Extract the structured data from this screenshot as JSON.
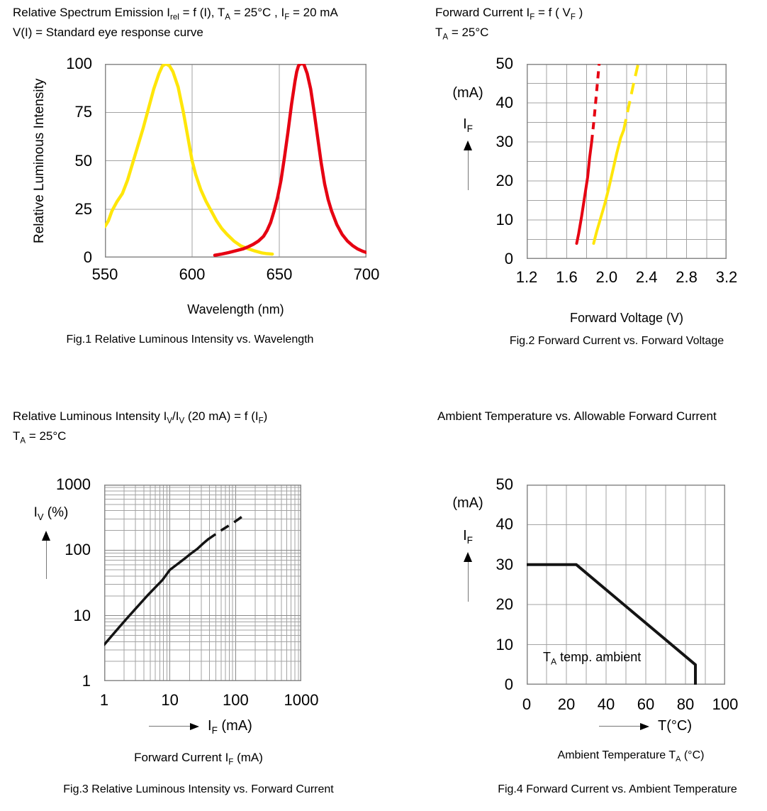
{
  "colors": {
    "red": "#e60012",
    "yellow": "#ffe60a",
    "black": "#141414",
    "grid": "#a3a3a3",
    "border": "#8a8a8a",
    "text": "#000000"
  },
  "figures": {
    "fig1": {
      "title_line1_html": "Relative Spectrum Emission I<sub>rel</sub> = f (I), T<sub>A</sub> = 25°C , I<sub>F</sub> = 20 mA",
      "title_line2": "V(I) = Standard eye response curve",
      "ylabel": "Relative Luminous Intensity",
      "yticks": [
        "100",
        "75",
        "50",
        "25",
        "0"
      ],
      "xticks": [
        "550",
        "600",
        "650",
        "700"
      ],
      "xlabel": "Wavelength (nm)",
      "caption": "Fig.1 Relative Luminous Intensity vs. Wavelength"
    },
    "fig2": {
      "title_line1_html": "Forward Current I<sub>F</sub> = f ( V<sub>F</sub> )",
      "title_line2_html": "T<sub>A</sub> = 25°C",
      "unit_label": "(mA)",
      "sym_label_html": "I<sub>F</sub>",
      "yticks": [
        "50",
        "40",
        "30",
        "20",
        "10",
        "0"
      ],
      "xticks": [
        "1.2",
        "1.6",
        "2.0",
        "2.4",
        "2.8",
        "3.2"
      ],
      "xlabel": "Forward Voltage (V)",
      "caption": "Fig.2 Forward Current vs. Forward Voltage"
    },
    "fig3": {
      "title_line1_html": "Relative Luminous Intensity I<sub>V</sub>/I<sub>V</sub> (20 mA) = f (I<sub>F</sub>)",
      "title_line2_html": "T<sub>A</sub> = 25°C",
      "sym_label_html": "I<sub>V</sub> (%)",
      "yticks": [
        "1000",
        "100",
        "10",
        "1"
      ],
      "xticks": [
        "1",
        "10",
        "100",
        "1000"
      ],
      "xarrow_label_html": "I<sub>F</sub> (mA)",
      "xlabel_html": "Forward Current I<sub>F</sub> (mA)",
      "caption": "Fig.3 Relative Luminous Intensity vs. Forward Current"
    },
    "fig4": {
      "title": "Ambient Temperature vs. Allowable Forward Current",
      "unit_label": "(mA)",
      "sym_label_html": "I<sub>F</sub>",
      "yticks": [
        "50",
        "40",
        "30",
        "20",
        "10",
        "0"
      ],
      "xticks": [
        "0",
        "20",
        "40",
        "60",
        "80",
        "100"
      ],
      "annotation_html": "T<sub>A</sub> temp. ambient",
      "xarrow_label": "T(°C)",
      "xlabel_html": "Ambient Temperature T<sub>A</sub> (°C)",
      "caption": "Fig.4 Forward Current vs. Ambient Temperature"
    }
  },
  "chart_data": [
    {
      "id": "fig1",
      "type": "line",
      "title": "Fig.1 Relative Luminous Intensity vs. Wavelength",
      "xlabel": "Wavelength (nm)",
      "ylabel": "Relative Luminous Intensity",
      "xscale": "linear",
      "yscale": "linear",
      "xlim": [
        550,
        700
      ],
      "ylim": [
        0,
        100
      ],
      "xgrid": [
        550,
        600,
        650,
        700
      ],
      "ygrid": [
        0,
        25,
        50,
        75,
        100
      ],
      "legend": "none",
      "series": [
        {
          "name": "yellow LED emission spectrum",
          "color": "#ffe60a",
          "width": 4.5,
          "dash": null,
          "points": [
            [
              550,
              16
            ],
            [
              552,
              19
            ],
            [
              554,
              24
            ],
            [
              557,
              29
            ],
            [
              560,
              33
            ],
            [
              563,
              40
            ],
            [
              566,
              49
            ],
            [
              569,
              58
            ],
            [
              572,
              67
            ],
            [
              575,
              77
            ],
            [
              578,
              87
            ],
            [
              581,
              95
            ],
            [
              583,
              99
            ],
            [
              585,
              100
            ],
            [
              587,
              99
            ],
            [
              589,
              96
            ],
            [
              592,
              88
            ],
            [
              595,
              75
            ],
            [
              598,
              60
            ],
            [
              600,
              50
            ],
            [
              602,
              43
            ],
            [
              605,
              35
            ],
            [
              608,
              29
            ],
            [
              611,
              24
            ],
            [
              614,
              19
            ],
            [
              617,
              15
            ],
            [
              620,
              12
            ],
            [
              624,
              8.5
            ],
            [
              628,
              6
            ],
            [
              632,
              4.6
            ],
            [
              636,
              3.4
            ],
            [
              640,
              2.4
            ],
            [
              643,
              2
            ],
            [
              646,
              1.8
            ]
          ]
        },
        {
          "name": "red LED emission spectrum",
          "color": "#e60012",
          "width": 4.5,
          "dash": null,
          "points": [
            [
              613,
              1.2
            ],
            [
              617,
              1.8
            ],
            [
              621,
              2.6
            ],
            [
              625,
              3.5
            ],
            [
              629,
              4.4
            ],
            [
              632,
              5.5
            ],
            [
              635,
              6.8
            ],
            [
              638,
              8.5
            ],
            [
              641,
              11
            ],
            [
              643,
              14
            ],
            [
              645,
              18
            ],
            [
              647,
              24
            ],
            [
              649,
              31
            ],
            [
              651,
              40
            ],
            [
              653,
              52
            ],
            [
              655,
              65
            ],
            [
              657,
              79
            ],
            [
              659,
              91
            ],
            [
              660,
              96
            ],
            [
              661,
              99
            ],
            [
              662,
              100
            ],
            [
              664,
              100
            ],
            [
              666,
              95
            ],
            [
              668,
              87
            ],
            [
              670,
              75
            ],
            [
              672,
              62
            ],
            [
              674,
              49
            ],
            [
              676,
              38
            ],
            [
              678,
              30
            ],
            [
              680,
              24
            ],
            [
              683,
              17
            ],
            [
              686,
              12
            ],
            [
              689,
              8.6
            ],
            [
              692,
              6.2
            ],
            [
              695,
              4.4
            ],
            [
              698,
              3.2
            ],
            [
              700,
              2.6
            ]
          ]
        }
      ]
    },
    {
      "id": "fig2",
      "type": "line",
      "title": "Fig.2 Forward Current vs. Forward Voltage",
      "xlabel": "Forward Voltage (V)",
      "ylabel": "IF (mA)",
      "xscale": "linear",
      "yscale": "linear",
      "xlim": [
        1.2,
        3.2
      ],
      "ylim": [
        0,
        50
      ],
      "xgrid": [
        1.2,
        1.4,
        1.6,
        1.8,
        2.0,
        2.2,
        2.4,
        2.6,
        2.8,
        3.0,
        3.2
      ],
      "ygrid": [
        0,
        5,
        10,
        15,
        20,
        25,
        30,
        35,
        40,
        45,
        50
      ],
      "legend": "none",
      "series": [
        {
          "name": "red LED V-I (solid)",
          "color": "#e60012",
          "width": 4,
          "dash": null,
          "points": [
            [
              1.7,
              4
            ],
            [
              1.72,
              6.5
            ],
            [
              1.75,
              11
            ],
            [
              1.78,
              16
            ],
            [
              1.81,
              21
            ],
            [
              1.83,
              26
            ],
            [
              1.85,
              30
            ]
          ]
        },
        {
          "name": "red LED V-I (dashed extrapolation)",
          "color": "#e60012",
          "width": 4,
          "dash": "10,8",
          "points": [
            [
              1.85,
              30
            ],
            [
              1.875,
              36
            ],
            [
              1.9,
              43
            ],
            [
              1.925,
              50
            ]
          ]
        },
        {
          "name": "yellow LED V-I (solid)",
          "color": "#ffe60a",
          "width": 4,
          "dash": null,
          "points": [
            [
              1.87,
              4
            ],
            [
              1.9,
              7
            ],
            [
              1.94,
              10.5
            ],
            [
              1.98,
              14
            ],
            [
              2.02,
              18
            ],
            [
              2.06,
              22.5
            ],
            [
              2.1,
              27
            ],
            [
              2.14,
              31
            ],
            [
              2.17,
              33
            ]
          ]
        },
        {
          "name": "yellow LED V-I (dashed extrapolation)",
          "color": "#ffe60a",
          "width": 4,
          "dash": "16,10",
          "points": [
            [
              2.17,
              33
            ],
            [
              2.22,
              39
            ],
            [
              2.27,
              45
            ],
            [
              2.315,
              50
            ]
          ]
        }
      ]
    },
    {
      "id": "fig3",
      "type": "line",
      "title": "Fig.3 Relative Luminous Intensity vs. Forward Current",
      "xlabel": "Forward Current IF (mA)",
      "ylabel": "IV (%)",
      "xscale": "log",
      "yscale": "log",
      "xlim": [
        1,
        1000
      ],
      "ylim": [
        1,
        1000
      ],
      "xgrid": [
        1,
        2,
        3,
        4,
        5,
        6,
        7,
        8,
        9,
        10,
        20,
        30,
        40,
        50,
        60,
        70,
        80,
        90,
        100,
        200,
        300,
        400,
        500,
        600,
        700,
        800,
        900,
        1000
      ],
      "ygrid": [
        1,
        2,
        3,
        4,
        5,
        6,
        7,
        8,
        9,
        10,
        20,
        30,
        40,
        50,
        60,
        70,
        80,
        90,
        100,
        200,
        300,
        400,
        500,
        600,
        700,
        800,
        900,
        1000
      ],
      "xgrid_major": [
        1,
        10,
        100,
        1000
      ],
      "ygrid_major": [
        1,
        10,
        100,
        1000
      ],
      "legend": "none",
      "series": [
        {
          "name": "relative luminous intensity (solid)",
          "color": "#141414",
          "width": 3.5,
          "dash": null,
          "points": [
            [
              1,
              3.6
            ],
            [
              1.3,
              4.9
            ],
            [
              1.7,
              6.7
            ],
            [
              2.2,
              9
            ],
            [
              2.8,
              11.8
            ],
            [
              3.6,
              15.6
            ],
            [
              4.6,
              20.5
            ],
            [
              6,
              27
            ],
            [
              7.7,
              35
            ],
            [
              10,
              50
            ],
            [
              13,
              61
            ],
            [
              17,
              75
            ],
            [
              21,
              89
            ],
            [
              26,
              104
            ],
            [
              32,
              126
            ],
            [
              38,
              146
            ]
          ]
        },
        {
          "name": "relative luminous intensity (dashed extrapolation)",
          "color": "#141414",
          "width": 3.5,
          "dash": "13,9",
          "points": [
            [
              38,
              146
            ],
            [
              50,
              176
            ],
            [
              65,
              210
            ],
            [
              85,
              248
            ],
            [
              110,
              295
            ],
            [
              140,
              352
            ]
          ]
        }
      ]
    },
    {
      "id": "fig4",
      "type": "line",
      "title": "Fig.4 Forward Current vs. Ambient Temperature",
      "xlabel": "Ambient Temperature TA (°C)",
      "ylabel": "IF (mA)",
      "xscale": "linear",
      "yscale": "linear",
      "xlim": [
        0,
        100
      ],
      "ylim": [
        0,
        50
      ],
      "xgrid": [
        0,
        10,
        20,
        30,
        40,
        50,
        60,
        70,
        80,
        90,
        100
      ],
      "ygrid": [
        0,
        10,
        20,
        30,
        40,
        50
      ],
      "legend": "none",
      "annotation": "TA temp. ambient",
      "series": [
        {
          "name": "allowable forward current derating",
          "color": "#141414",
          "width": 4,
          "dash": null,
          "points": [
            [
              0,
              30
            ],
            [
              25,
              30
            ],
            [
              85,
              5
            ],
            [
              85,
              0
            ]
          ]
        }
      ]
    }
  ]
}
